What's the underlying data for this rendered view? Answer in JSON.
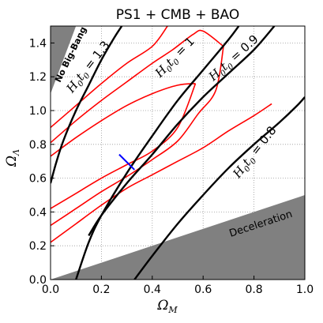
{
  "chart_data": {
    "type": "line",
    "title": "PS1 + CMB + BAO",
    "xlabel": "Ω",
    "xlabel_sub": "M",
    "ylabel": "Ω",
    "ylabel_sub": "Λ",
    "xlim": [
      0.0,
      1.0
    ],
    "ylim": [
      0.0,
      1.5
    ],
    "grid": true,
    "grid_style": "dotted",
    "x_ticks": [
      {
        "value": 0.0,
        "label": "0.0"
      },
      {
        "value": 0.2,
        "label": "0.2"
      },
      {
        "value": 0.4,
        "label": "0.4"
      },
      {
        "value": 0.6,
        "label": "0.6"
      },
      {
        "value": 0.8,
        "label": "0.8"
      },
      {
        "value": 1.0,
        "label": "1.0"
      }
    ],
    "y_ticks": [
      {
        "value": 0.0,
        "label": "0.0"
      },
      {
        "value": 0.2,
        "label": "0.2"
      },
      {
        "value": 0.4,
        "label": "0.4"
      },
      {
        "value": 0.6,
        "label": "0.6"
      },
      {
        "value": 0.8,
        "label": "0.8"
      },
      {
        "value": 1.0,
        "label": "1.0"
      },
      {
        "value": 1.2,
        "label": "1.2"
      },
      {
        "value": 1.4,
        "label": "1.4"
      }
    ],
    "regions": [
      {
        "label": "No Big-Bang",
        "color": "#808080",
        "points": [
          [
            0.0,
            1.5
          ],
          [
            0.1,
            1.5
          ],
          [
            0.075,
            1.4
          ],
          [
            0.03,
            1.22
          ],
          [
            0.0,
            1.1
          ]
        ]
      },
      {
        "label": "Deceleration",
        "color": "#808080",
        "points": [
          [
            0.0,
            0.0
          ],
          [
            1.0,
            0.5
          ],
          [
            1.0,
            0.0
          ]
        ]
      }
    ],
    "age_contours": [
      {
        "label_main": "H",
        "label_sub1": "0",
        "label_mid": "t",
        "label_sub2": "0",
        "label_end": " = 1.3",
        "label_anchor": [
          0.16,
          1.245
        ],
        "label_angle": -52,
        "points": [
          [
            0.0,
            0.57
          ],
          [
            0.02,
            0.68
          ],
          [
            0.05,
            0.82
          ],
          [
            0.1,
            1.0
          ],
          [
            0.15,
            1.15
          ],
          [
            0.2,
            1.3
          ],
          [
            0.25,
            1.43
          ],
          [
            0.28,
            1.5
          ]
        ]
      },
      {
        "label_main": "H",
        "label_sub1": "0",
        "label_mid": "t",
        "label_sub2": "0",
        "label_end": " = 1",
        "label_anchor": [
          0.5,
          1.3
        ],
        "label_angle": -46,
        "points": [
          [
            0.1,
            0.0
          ],
          [
            0.15,
            0.22
          ],
          [
            0.2,
            0.38
          ],
          [
            0.3,
            0.63
          ],
          [
            0.4,
            0.85
          ],
          [
            0.5,
            1.06
          ],
          [
            0.6,
            1.24
          ],
          [
            0.7,
            1.42
          ],
          [
            0.74,
            1.5
          ]
        ]
      },
      {
        "label_main": "H",
        "label_sub1": "0",
        "label_mid": "t",
        "label_sub2": "0",
        "label_end": " = 0.9",
        "label_anchor": [
          0.73,
          1.295
        ],
        "label_angle": -42,
        "points": [
          [
            0.15,
            0.26
          ],
          [
            0.2,
            0.38
          ],
          [
            0.3,
            0.57
          ],
          [
            0.4,
            0.74
          ],
          [
            0.5,
            0.92
          ],
          [
            0.6,
            1.08
          ],
          [
            0.7,
            1.22
          ],
          [
            0.8,
            1.36
          ],
          [
            0.88,
            1.5
          ]
        ]
      },
      {
        "label_main": "H",
        "label_sub1": "0",
        "label_mid": "t",
        "label_sub2": "0",
        "label_end": " = 0.8",
        "label_anchor": [
          0.815,
          0.74
        ],
        "label_angle": -52,
        "points": [
          [
            0.33,
            0.0
          ],
          [
            0.4,
            0.14
          ],
          [
            0.5,
            0.33
          ],
          [
            0.6,
            0.5
          ],
          [
            0.7,
            0.66
          ],
          [
            0.8,
            0.8
          ],
          [
            0.9,
            0.93
          ],
          [
            0.97,
            1.03
          ],
          [
            1.0,
            1.08
          ]
        ]
      }
    ],
    "confidence_contours": {
      "color": "#ff0000",
      "outer": {
        "upper": [
          [
            0.0,
            0.9
          ],
          [
            0.1,
            1.03
          ],
          [
            0.2,
            1.16
          ],
          [
            0.3,
            1.28
          ],
          [
            0.4,
            1.38
          ],
          [
            0.46,
            1.5
          ]
        ],
        "lower": [
          [
            0.0,
            0.22
          ],
          [
            0.1,
            0.33
          ],
          [
            0.2,
            0.44
          ],
          [
            0.3,
            0.54
          ],
          [
            0.4,
            0.62
          ],
          [
            0.5,
            0.7
          ],
          [
            0.6,
            0.78
          ],
          [
            0.7,
            0.88
          ],
          [
            0.8,
            0.97
          ],
          [
            0.87,
            1.04
          ]
        ]
      },
      "middle": {
        "upper": [
          [
            0.0,
            0.81
          ],
          [
            0.1,
            0.94
          ],
          [
            0.2,
            1.06
          ],
          [
            0.3,
            1.17
          ],
          [
            0.4,
            1.28
          ],
          [
            0.48,
            1.36
          ],
          [
            0.56,
            1.45
          ],
          [
            0.6,
            1.47
          ],
          [
            0.68,
            1.38
          ]
        ],
        "lower": [
          [
            0.0,
            0.32
          ],
          [
            0.1,
            0.42
          ],
          [
            0.2,
            0.52
          ],
          [
            0.3,
            0.61
          ],
          [
            0.4,
            0.71
          ],
          [
            0.5,
            0.82
          ],
          [
            0.58,
            0.98
          ],
          [
            0.65,
            1.12
          ],
          [
            0.68,
            1.38
          ]
        ]
      },
      "inner": {
        "upper": [
          [
            0.0,
            0.73
          ],
          [
            0.1,
            0.84
          ],
          [
            0.2,
            0.94
          ],
          [
            0.3,
            1.03
          ],
          [
            0.4,
            1.1
          ],
          [
            0.5,
            1.15
          ],
          [
            0.57,
            1.16
          ]
        ],
        "lower": [
          [
            0.0,
            0.42
          ],
          [
            0.1,
            0.51
          ],
          [
            0.2,
            0.6
          ],
          [
            0.3,
            0.68
          ],
          [
            0.4,
            0.76
          ],
          [
            0.5,
            0.9
          ],
          [
            0.57,
            1.16
          ]
        ]
      }
    },
    "marker": {
      "color": "#0000ff",
      "from": [
        0.27,
        0.74
      ],
      "to": [
        0.33,
        0.65
      ]
    }
  }
}
